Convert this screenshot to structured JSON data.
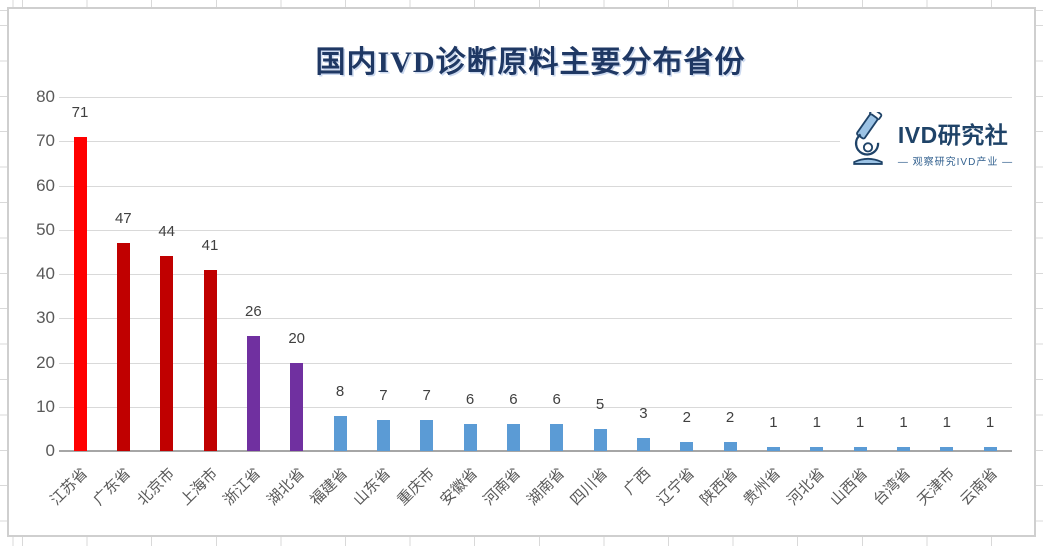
{
  "logo": {
    "name": "IVD研究社",
    "tagline": "— 观察研究IVD产业 —",
    "icon": "microscope-icon",
    "brand_color": "#1f4368"
  },
  "chart_data": {
    "type": "bar",
    "title": "国内IVD诊断原料主要分布省份",
    "categories": [
      "江苏省",
      "广东省",
      "北京市",
      "上海市",
      "浙江省",
      "湖北省",
      "福建省",
      "山东省",
      "重庆市",
      "安徽省",
      "河南省",
      "湖南省",
      "四川省",
      "广西",
      "辽宁省",
      "陕西省",
      "贵州省",
      "河北省",
      "山西省",
      "台湾省",
      "天津市",
      "云南省"
    ],
    "values": [
      71,
      47,
      44,
      41,
      26,
      20,
      8,
      7,
      7,
      6,
      6,
      6,
      5,
      3,
      2,
      2,
      1,
      1,
      1,
      1,
      1,
      1
    ],
    "bar_colors": [
      "#ff0000",
      "#c00000",
      "#c00000",
      "#c00000",
      "#7030a0",
      "#7030a0",
      "#5b9bd5",
      "#5b9bd5",
      "#5b9bd5",
      "#5b9bd5",
      "#5b9bd5",
      "#5b9bd5",
      "#5b9bd5",
      "#5b9bd5",
      "#5b9bd5",
      "#5b9bd5",
      "#5b9bd5",
      "#5b9bd5",
      "#5b9bd5",
      "#5b9bd5",
      "#5b9bd5",
      "#5b9bd5"
    ],
    "xlabel": "",
    "ylabel": "",
    "ylim": [
      0,
      80
    ],
    "yticks": [
      0,
      10,
      20,
      30,
      40,
      50,
      60,
      70,
      80
    ],
    "grid": true,
    "legend_position": "none",
    "colors": {
      "title": "#1f3864",
      "tick_labels": "#595959",
      "value_labels": "#404040",
      "gridline": "#d9d9d9",
      "axis_line": "#a6a6a6"
    }
  }
}
